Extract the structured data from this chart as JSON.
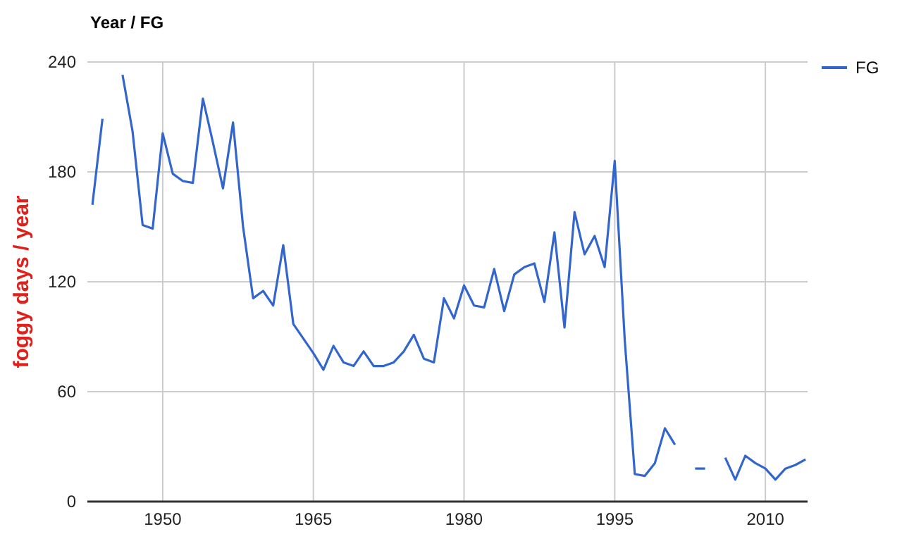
{
  "chart_data": {
    "type": "line",
    "title": "Year / FG",
    "ylabel": "foggy days / year",
    "x": [
      1943,
      1944,
      1945,
      1946,
      1947,
      1948,
      1949,
      1950,
      1951,
      1952,
      1953,
      1954,
      1955,
      1956,
      1957,
      1958,
      1959,
      1960,
      1961,
      1962,
      1963,
      1964,
      1965,
      1966,
      1967,
      1968,
      1969,
      1970,
      1971,
      1972,
      1973,
      1974,
      1975,
      1976,
      1977,
      1978,
      1979,
      1980,
      1981,
      1982,
      1983,
      1984,
      1985,
      1986,
      1987,
      1988,
      1989,
      1990,
      1991,
      1992,
      1993,
      1994,
      1995,
      1996,
      1997,
      1998,
      1999,
      2000,
      2001,
      2002,
      2003,
      2004,
      2005,
      2006,
      2007,
      2008,
      2009,
      2010,
      2011,
      2012,
      2013,
      2014
    ],
    "series": [
      {
        "name": "FG",
        "color": "#3366cc",
        "values": [
          162,
          209,
          null,
          233,
          202,
          151,
          149,
          201,
          179,
          175,
          174,
          220,
          196,
          171,
          207,
          150,
          111,
          115,
          107,
          140,
          97,
          89,
          81,
          72,
          85,
          76,
          74,
          82,
          74,
          74,
          76,
          82,
          91,
          78,
          76,
          111,
          100,
          118,
          107,
          106,
          127,
          104,
          124,
          128,
          130,
          109,
          147,
          95,
          158,
          135,
          145,
          128,
          186,
          88,
          15,
          14,
          21,
          40,
          31,
          null,
          18,
          18,
          null,
          24,
          12,
          25,
          21,
          18,
          12,
          18,
          20,
          23
        ]
      }
    ],
    "xlim": [
      1942.5,
      2014.2
    ],
    "xticks": [
      1950,
      1965,
      1980,
      1995,
      2010
    ],
    "ylim": [
      0,
      240
    ],
    "yticks": [
      0,
      60,
      120,
      180,
      240
    ],
    "grid": true,
    "legend": "top right",
    "marker": "none",
    "line_style": "solid"
  }
}
